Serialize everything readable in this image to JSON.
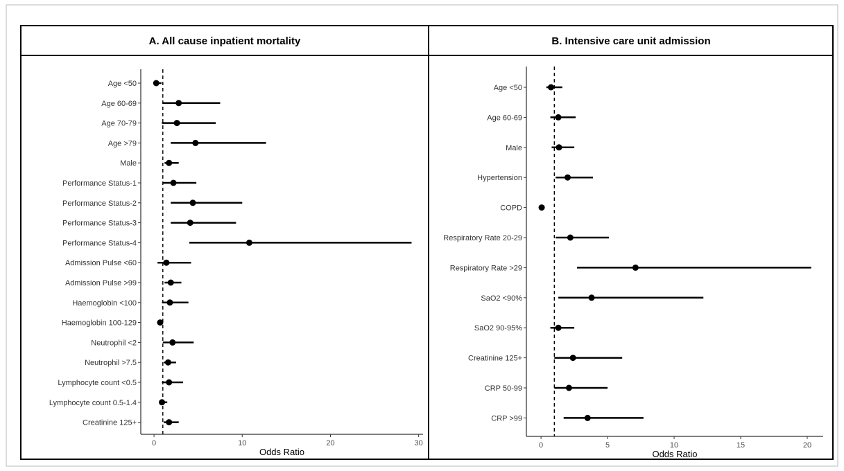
{
  "chart_data": [
    {
      "type": "forest",
      "title": "A. All cause inpatient mortality",
      "xlabel": "Odds Ratio",
      "xlim": [
        -1.5,
        30.5
      ],
      "xticks": [
        0,
        10,
        20,
        30
      ],
      "reference_line": 1,
      "categories": [
        "Age <50",
        "Age 60-69",
        "Age 70-79",
        "Age >79",
        "Male",
        "Performance Status-1",
        "Performance Status-2",
        "Performance Status-3",
        "Performance Status-4",
        "Admission Pulse <60",
        "Admission Pulse >99",
        "Haemoglobin <100",
        "Haemoglobin 100-129",
        "Neutrophil <2",
        "Neutrophil >7.5",
        "Lymphocyte count <0.5",
        "Lymphocyte count 0.5-1.4",
        "Creatinine 125+"
      ],
      "estimates": [
        0.25,
        2.8,
        2.6,
        4.7,
        1.7,
        2.2,
        4.4,
        4.1,
        10.8,
        1.4,
        1.9,
        1.8,
        0.7,
        2.1,
        1.6,
        1.7,
        0.9,
        1.7
      ],
      "lower": [
        0.1,
        1.0,
        0.9,
        1.9,
        1.2,
        1.0,
        1.9,
        1.9,
        4.0,
        0.4,
        1.2,
        0.9,
        0.5,
        1.0,
        1.1,
        0.9,
        0.6,
        1.1
      ],
      "upper": [
        0.85,
        7.5,
        7.0,
        12.7,
        2.8,
        4.8,
        10.0,
        9.3,
        29.2,
        4.2,
        3.1,
        3.9,
        0.95,
        4.5,
        2.5,
        3.3,
        1.5,
        2.8
      ]
    },
    {
      "type": "forest",
      "title": "B. Intensive care unit admission",
      "xlabel": "Odds Ratio",
      "xlim": [
        -1.1,
        21.2
      ],
      "xticks": [
        0,
        5,
        10,
        15,
        20
      ],
      "reference_line": 1,
      "categories": [
        "Age <50",
        "Age 60-69",
        "Male",
        "Hypertension",
        "COPD",
        "Respiratory Rate 20-29",
        "Respiratory Rate >29",
        "SaO2 <90%",
        "SaO2 90-95%",
        "Creatinine 125+",
        "CRP 50-99",
        "CRP >99"
      ],
      "estimates": [
        0.75,
        1.3,
        1.35,
        2.0,
        0.05,
        2.2,
        7.1,
        3.8,
        1.3,
        2.4,
        2.1,
        3.5
      ],
      "lower": [
        0.4,
        0.7,
        0.8,
        1.1,
        0.0,
        1.1,
        2.7,
        1.3,
        0.7,
        1.0,
        1.0,
        1.7
      ],
      "upper": [
        1.6,
        2.6,
        2.5,
        3.9,
        0.1,
        5.1,
        20.3,
        12.2,
        2.5,
        6.1,
        5.0,
        7.7
      ]
    }
  ]
}
